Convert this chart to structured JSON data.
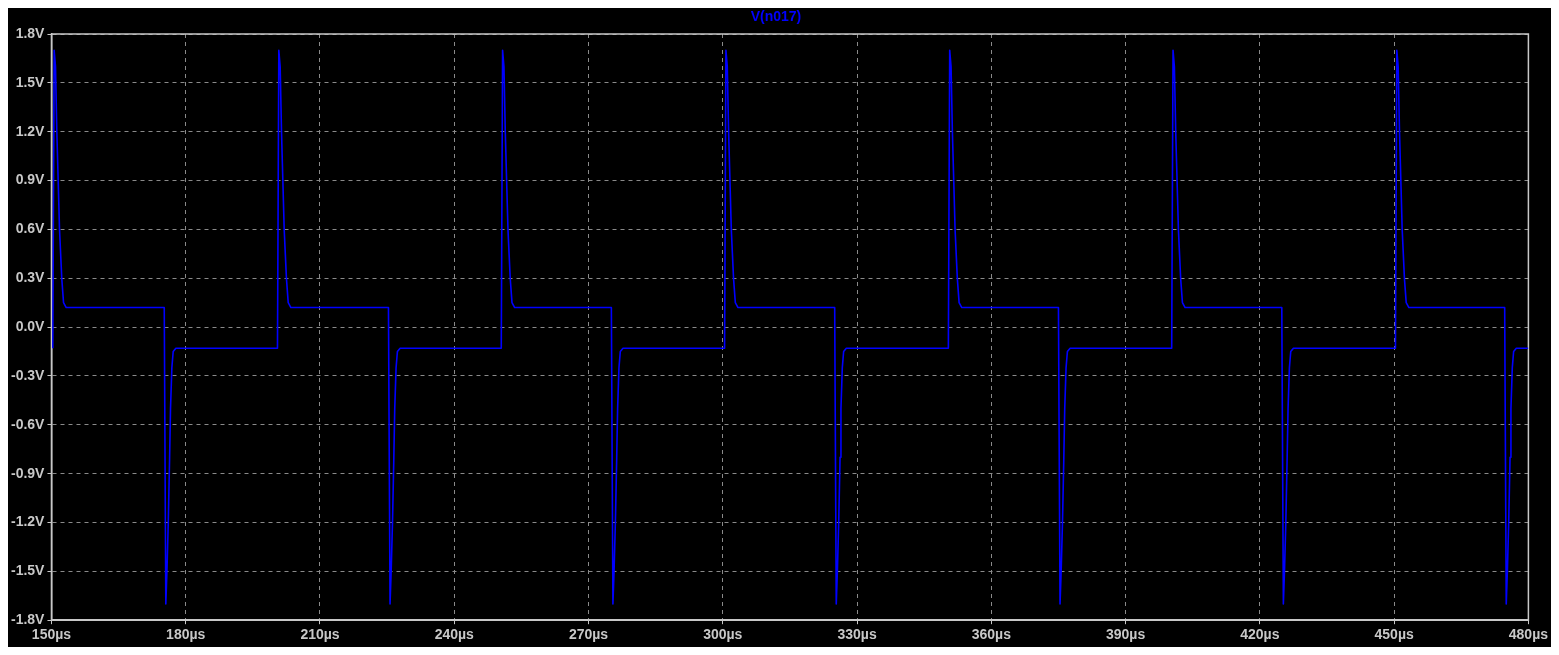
{
  "chart_data": {
    "type": "line",
    "xlim": [
      150,
      480
    ],
    "xticks": [
      {
        "value": 150,
        "label": "150µs"
      },
      {
        "value": 180,
        "label": "180µs"
      },
      {
        "value": 210,
        "label": "210µs"
      },
      {
        "value": 240,
        "label": "240µs"
      },
      {
        "value": 270,
        "label": "270µs"
      },
      {
        "value": 300,
        "label": "300µs"
      },
      {
        "value": 330,
        "label": "330µs"
      },
      {
        "value": 360,
        "label": "360µs"
      },
      {
        "value": 390,
        "label": "390µs"
      },
      {
        "value": 420,
        "label": "420µs"
      },
      {
        "value": 450,
        "label": "450µs"
      },
      {
        "value": 480,
        "label": "480µs"
      }
    ],
    "ylim": [
      -1.8,
      1.8
    ],
    "yticks": [
      {
        "value": -1.8,
        "label": "-1.8V"
      },
      {
        "value": -1.5,
        "label": "-1.5V"
      },
      {
        "value": -1.2,
        "label": "-1.2V"
      },
      {
        "value": -0.9,
        "label": "-0.9V"
      },
      {
        "value": -0.6,
        "label": "-0.6V"
      },
      {
        "value": -0.3,
        "label": "-0.3V"
      },
      {
        "value": 0,
        "label": "0.0V"
      },
      {
        "value": 0.3,
        "label": "0.3V"
      },
      {
        "value": 0.6,
        "label": "0.6V"
      },
      {
        "value": 0.9,
        "label": "0.9V"
      },
      {
        "value": 1.2,
        "label": "1.2V"
      },
      {
        "value": 1.5,
        "label": "1.5V"
      },
      {
        "value": 1.8,
        "label": "1.8V"
      }
    ],
    "grid": true,
    "legend": "top",
    "marker": "none",
    "line_style": "solid",
    "series": [
      {
        "name": "V(n017)",
        "color": "#0000ff",
        "x": [
          150.3,
          150.6,
          150.9,
          151.2,
          151.5,
          151.8,
          152.3,
          152.7,
          153.3,
          175.2,
          175.55,
          175.8,
          176.1,
          176.4,
          176.6,
          176.9,
          177.2,
          177.8,
          200.5,
          200.8,
          201.1,
          201.4,
          201.7,
          202,
          202.5,
          202.9,
          203.5,
          225.3,
          225.65,
          225.9,
          226.2,
          226.5,
          226.7,
          227,
          227.3,
          227.9,
          250.5,
          250.8,
          251.1,
          251.4,
          251.7,
          252,
          252.5,
          252.9,
          253.5,
          275.1,
          275.45,
          275.7,
          276,
          276.3,
          276.5,
          276.8,
          277.1,
          277.7,
          300.4,
          300.7,
          301,
          301.3,
          301.6,
          301.9,
          302.4,
          302.8,
          303.4,
          325,
          325.35,
          325.6,
          325.9,
          326.2,
          326.4,
          326.7,
          327,
          327.6,
          350.4,
          350.7,
          351,
          351.3,
          351.6,
          351.9,
          352.4,
          352.8,
          353.4,
          375,
          375.35,
          375.6,
          375.9,
          376.2,
          376.4,
          376.7,
          377,
          377.6,
          400.3,
          400.6,
          400.9,
          401.2,
          401.5,
          401.8,
          402.3,
          402.7,
          403.3,
          424.9,
          425.25,
          425.5,
          425.8,
          426.1,
          426.3,
          426.6,
          426.9,
          427.5,
          450.3,
          450.6,
          450.9,
          451.2,
          451.5,
          451.8,
          452.3,
          452.7,
          453.3,
          474.7,
          475.05,
          475.3,
          475.6,
          475.9,
          476.1,
          476.4,
          476.7,
          477.3,
          480
        ],
        "values": [
          -0.13,
          1.7,
          1.6,
          1.2,
          0.9,
          0.6,
          0.3,
          0.15,
          0.12,
          0.12,
          -1.7,
          -1.5,
          -1.2,
          -0.8,
          -0.5,
          -0.25,
          -0.15,
          -0.13,
          -0.13,
          1.7,
          1.6,
          1.2,
          0.9,
          0.6,
          0.3,
          0.15,
          0.12,
          0.12,
          -1.7,
          -1.5,
          -1.2,
          -0.8,
          -0.5,
          -0.25,
          -0.15,
          -0.13,
          -0.13,
          1.7,
          1.6,
          1.2,
          0.9,
          0.6,
          0.3,
          0.15,
          0.12,
          0.12,
          -1.7,
          -1.5,
          -1.2,
          -0.8,
          -0.5,
          -0.25,
          -0.15,
          -0.13,
          -0.13,
          1.7,
          1.6,
          1.2,
          0.9,
          0.6,
          0.3,
          0.15,
          0.12,
          0.12,
          -1.7,
          -1.5,
          -1.2,
          -0.8,
          -0.5,
          -0.25,
          -0.15,
          -0.13,
          -0.13,
          1.7,
          1.6,
          1.2,
          0.9,
          0.6,
          0.3,
          0.15,
          0.12,
          0.12,
          -1.7,
          -1.5,
          -1.2,
          -0.8,
          -0.5,
          -0.25,
          -0.15,
          -0.13,
          -0.13,
          1.7,
          1.6,
          1.2,
          0.9,
          0.6,
          0.3,
          0.15,
          0.12,
          0.12,
          -1.7,
          -1.5,
          -1.2,
          -0.8,
          -0.5,
          -0.25,
          -0.15,
          -0.13,
          -0.13,
          1.7,
          1.6,
          1.2,
          0.9,
          0.6,
          0.3,
          0.15,
          0.12,
          0.12,
          -1.7,
          -1.5,
          -1.2,
          -0.8,
          -0.5,
          -0.25,
          -0.15,
          -0.13,
          -0.13
        ]
      }
    ]
  }
}
